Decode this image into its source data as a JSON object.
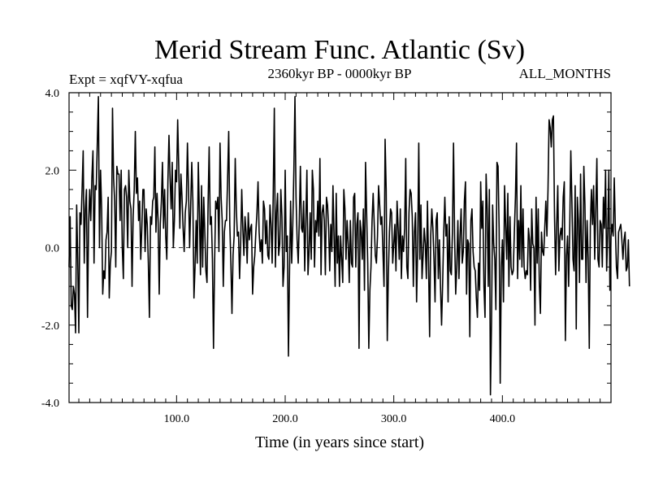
{
  "chart_data": {
    "type": "line",
    "title": "Merid Stream Func. Atlantic (Sv)",
    "left_label": "Expt = xqfVY-xqfua",
    "center_label": "2360kyr BP - 0000kyr BP",
    "right_label": "ALL_MONTHS",
    "xlabel": "Time (in years since start)",
    "ylabel": "",
    "xlim": [
      1,
      500
    ],
    "ylim": [
      -4.0,
      4.0
    ],
    "xticks": [
      100,
      200,
      300,
      400
    ],
    "xtick_labels": [
      "100.0",
      "200.0",
      "300.0",
      "400.0"
    ],
    "yticks": [
      4,
      2,
      0,
      -2,
      -4
    ],
    "ytick_labels": [
      "4.0",
      "2.0",
      "0.0",
      "-2.0",
      "-4.0"
    ],
    "zero_line": 0,
    "series": [
      {
        "name": "Merid Stream Func. Atlantic",
        "x_start": 1,
        "x_step": 1,
        "values": [
          -0.5,
          0.8,
          -1.5,
          -1.6,
          -1.0,
          -1.2,
          -2.2,
          1.1,
          -0.3,
          -2.2,
          0.9,
          0.6,
          1.5,
          2.5,
          -0.4,
          1.0,
          1.5,
          -1.8,
          0.6,
          1.5,
          0.7,
          1.8,
          2.5,
          -0.4,
          1.6,
          1.5,
          2.7,
          3.9,
          0.0,
          2.0,
          1.0,
          -1.2,
          -0.6,
          -0.8,
          0.2,
          0.4,
          1.3,
          -1.3,
          -0.4,
          -0.1,
          3.6,
          1.8,
          1.2,
          -0.5,
          2.1,
          1.9,
          1.9,
          0.7,
          2.0,
          0.0,
          -0.8,
          1.5,
          1.6,
          1.3,
          0.0,
          2.0,
          1.2,
          1.0,
          -1.0,
          0.8,
          1.5,
          3.0,
          1.4,
          1.8,
          0.7,
          1.2,
          -0.3,
          0.5,
          1.5,
          1.5,
          -0.1,
          1.0,
          0.6,
          -0.4,
          -1.8,
          0.8,
          0.6,
          1.2,
          1.3,
          2.6,
          0.4,
          1.4,
          0.7,
          -1.2,
          0.6,
          1.2,
          2.2,
          0.5,
          1.5,
          0.3,
          -0.3,
          1.7,
          2.9,
          1.8,
          1.0,
          2.2,
          0.0,
          0.7,
          2.0,
          1.7,
          3.3,
          2.1,
          0.5,
          1.9,
          1.3,
          0.5,
          -0.1,
          0.9,
          1.2,
          2.7,
          1.5,
          0.0,
          1.1,
          2.2,
          1.2,
          -1.3,
          -0.5,
          0.7,
          -0.4,
          2.2,
          0.9,
          -0.7,
          1.6,
          -0.5,
          1.3,
          0.4,
          -0.6,
          -0.9,
          1.1,
          2.6,
          0.6,
          0.8,
          -0.3,
          -2.6,
          -0.4,
          1.2,
          1.0,
          1.3,
          -0.1,
          2.7,
          1.3,
          0.7,
          -1.0,
          0.4,
          0.7,
          0.7,
          1.8,
          3.0,
          0.6,
          -0.4,
          -1.7,
          -0.2,
          0.3,
          2.3,
          1.0,
          0.3,
          0.4,
          -0.8,
          0.1,
          1.5,
          0.5,
          -0.2,
          0.8,
          0.4,
          -0.4,
          0.9,
          0.2,
          0.5,
          0.6,
          -1.2,
          -0.5,
          -0.2,
          0.4,
          0.9,
          1.7,
          0.4,
          -0.1,
          0.2,
          -0.4,
          1.2,
          1.0,
          0.1,
          0.7,
          -0.2,
          -0.3,
          1.1,
          0.6,
          -0.4,
          1.4,
          3.6,
          -0.5,
          0.9,
          1.4,
          -0.2,
          0.1,
          1.5,
          0.8,
          -1.0,
          -0.5,
          2.0,
          -0.1,
          0.3,
          -2.8,
          -0.6,
          1.2,
          -0.4,
          0.6,
          2.0,
          3.9,
          1.3,
          0.2,
          -0.4,
          0.7,
          2.1,
          0.5,
          0.4,
          1.2,
          -0.6,
          0.7,
          2.0,
          -0.7,
          -0.1,
          0.9,
          -0.3,
          2.0,
          1.5,
          -0.5,
          0.7,
          0.4,
          1.2,
          0.3,
          2.3,
          -0.7,
          0.9,
          1.1,
          0.7,
          -0.7,
          1.3,
          1.1,
          0.5,
          -0.6,
          0.6,
          -0.1,
          1.6,
          0.3,
          -1.0,
          1.4,
          -0.4,
          0.3,
          -1.0,
          0.3,
          -0.3,
          -0.9,
          1.5,
          1.0,
          -0.3,
          0.7,
          0.1,
          -0.9,
          0.7,
          -0.4,
          -0.5,
          1.3,
          1.4,
          -0.5,
          0.6,
          0.9,
          -2.6,
          0.7,
          0.4,
          -0.3,
          1.0,
          -1.1,
          2.2,
          0.9,
          -0.4,
          -2.6,
          -1.1,
          -0.5,
          0.7,
          1.4,
          0.6,
          -0.2,
          -0.4,
          0.3,
          1.6,
          1.1,
          0.6,
          0.8,
          -0.1,
          -1.0,
          2.8,
          1.5,
          -2.4,
          -0.7,
          0.4,
          1.0,
          0.9,
          -0.4,
          0.1,
          0.6,
          -0.6,
          1.2,
          0.5,
          -0.3,
          1.0,
          -0.8,
          0.3,
          -0.1,
          0.5,
          2.3,
          -0.5,
          -0.8,
          0.9,
          1.5,
          1.4,
          0.8,
          -1.0,
          0.4,
          0.9,
          -1.4,
          0.0,
          2.7,
          -0.3,
          1.1,
          -0.8,
          -0.2,
          0.5,
          0.1,
          -0.8,
          1.2,
          -0.4,
          -2.3,
          0.3,
          1.0,
          0.5,
          -0.3,
          -1.4,
          0.7,
          0.9,
          -0.8,
          0.2,
          -1.0,
          -2.0,
          -0.9,
          0.4,
          1.3,
          0.3,
          0.6,
          -1.4,
          0.8,
          -0.6,
          -0.7,
          0.4,
          2.7,
          0.3,
          -1.2,
          -0.5,
          0.7,
          -0.8,
          0.3,
          1.0,
          -0.4,
          -0.1,
          1.2,
          1.7,
          -1.2,
          0.2,
          0.1,
          -2.3,
          0.7,
          1.0,
          -0.1,
          -0.5,
          -0.6,
          -1.3,
          -1.8,
          -0.4,
          -1.1,
          1.7,
          0.5,
          1.2,
          -1.0,
          -1.8,
          1.9,
          1.0,
          -1.0,
          1.5,
          -3.8,
          -1.9,
          1.1,
          0.1,
          -0.3,
          -1.6,
          2.2,
          2.1,
          0.5,
          -3.5,
          -0.5,
          0.2,
          -1.4,
          1.6,
          0.6,
          -0.3,
          1.4,
          -1.0,
          0.8,
          -0.5,
          -0.7,
          -0.6,
          0.4,
          1.3,
          2.7,
          -0.8,
          0.7,
          -0.3,
          1.6,
          -0.5,
          1.0,
          -0.5,
          -0.8,
          -0.6,
          -0.7,
          0.5,
          0.2,
          -1.1,
          1.0,
          0.1,
          0.0,
          -2.0,
          1.3,
          -0.4,
          1.0,
          -0.9,
          -1.7,
          0.4,
          -0.1,
          -0.2,
          0.5,
          1.2,
          0.3,
          1.5,
          3.3,
          3.1,
          2.6,
          3.3,
          3.4,
          0.8,
          -0.7,
          0.6,
          1.6,
          -0.6,
          0.3,
          0.5,
          0.2,
          1.3,
          1.7,
          -2.4,
          -0.2,
          0.3,
          -1.0,
          0.5,
          2.5,
          1.2,
          -0.3,
          -0.6,
          1.6,
          -2.1,
          1.3,
          0.7,
          -0.9,
          1.9,
          -0.3,
          -0.3,
          2.1,
          1.1,
          -0.9,
          0.7,
          -0.3,
          -2.6,
          0.6,
          1.5,
          0.6,
          1.6,
          -0.3,
          1.0,
          2.3,
          -0.3,
          -0.5,
          0.7,
          0.6,
          -0.5,
          1.3,
          0.5,
          2.0,
          -0.6,
          0.4,
          2.0,
          -1.1,
          0.3,
          0.6,
          0.3,
          1.8,
          0.5,
          -0.5,
          -0.8,
          0.4,
          0.5,
          0.6,
          0.2,
          -0.3,
          0.2,
          0.4,
          -0.6,
          -0.5,
          0.2,
          -1.0
        ]
      }
    ]
  }
}
